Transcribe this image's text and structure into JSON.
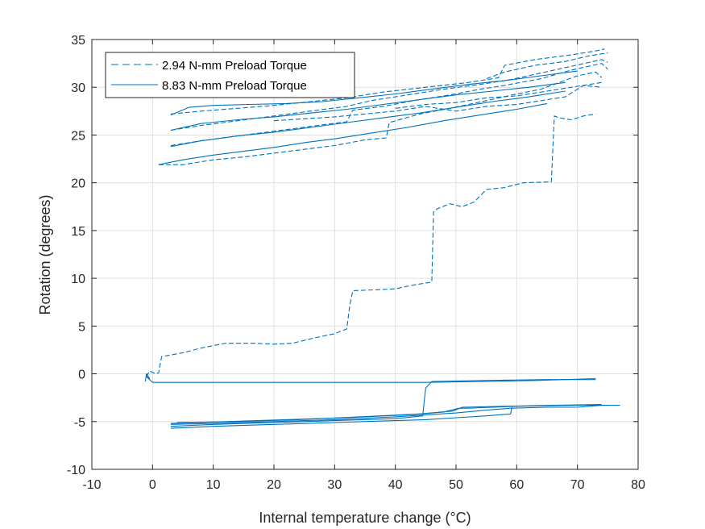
{
  "colors": {
    "series": "#0072BD",
    "grid": "#dfdfdf",
    "axis": "#262626"
  },
  "chart_data": {
    "type": "line",
    "title": "",
    "xlabel": "Internal temperature change (°C)",
    "ylabel": "Rotation (degrees)",
    "xlim": [
      -10,
      80
    ],
    "ylim": [
      -10,
      35
    ],
    "xticks": [
      -10,
      0,
      10,
      20,
      30,
      40,
      50,
      60,
      70,
      80
    ],
    "yticks": [
      -10,
      -5,
      0,
      5,
      10,
      15,
      20,
      25,
      30,
      35
    ],
    "grid": true,
    "legend_position": "top-left",
    "series": [
      {
        "name": "2.94 N-mm Preload Torque",
        "style": "dashed",
        "lines": [
          [
            [
              -1,
              -0.3
            ],
            [
              -0.5,
              0.3
            ],
            [
              0.5,
              0
            ],
            [
              1,
              0.1
            ],
            [
              1.5,
              1.8
            ],
            [
              5,
              2.2
            ],
            [
              8,
              2.7
            ],
            [
              12,
              3.2
            ],
            [
              17,
              3.2
            ],
            [
              20,
              3.1
            ],
            [
              23,
              3.2
            ],
            [
              27,
              3.8
            ],
            [
              30,
              4.2
            ],
            [
              32,
              4.7
            ],
            [
              32.5,
              7.2
            ],
            [
              33,
              8.7
            ],
            [
              37,
              8.8
            ],
            [
              40,
              8.9
            ],
            [
              43,
              9.3
            ],
            [
              46,
              9.6
            ],
            [
              46.3,
              17
            ],
            [
              47,
              17.3
            ],
            [
              49,
              17.8
            ],
            [
              51,
              17.5
            ],
            [
              53,
              18
            ],
            [
              55,
              19.3
            ],
            [
              58,
              19.5
            ],
            [
              61,
              20
            ],
            [
              65.7,
              20.1
            ],
            [
              66.2,
              27
            ],
            [
              67,
              26.8
            ],
            [
              69,
              26.6
            ],
            [
              71,
              27
            ],
            [
              73,
              27.2
            ]
          ],
          [
            [
              1,
              21.9
            ],
            [
              5,
              21.9
            ],
            [
              10,
              22.4
            ],
            [
              15,
              22.7
            ],
            [
              20,
              23.1
            ],
            [
              25,
              23.5
            ],
            [
              30,
              23.9
            ],
            [
              35,
              24.5
            ],
            [
              38.5,
              24.7
            ],
            [
              39,
              26.3
            ],
            [
              44,
              27.2
            ],
            [
              49,
              27.8
            ],
            [
              55,
              28.6
            ],
            [
              60,
              29.3
            ],
            [
              64,
              29.8
            ],
            [
              67,
              30.5
            ],
            [
              70,
              31.2
            ],
            [
              73,
              31.6
            ],
            [
              74,
              31
            ]
          ],
          [
            [
              3,
              23.9
            ],
            [
              8,
              24.4
            ],
            [
              14,
              24.9
            ],
            [
              20,
              25.4
            ],
            [
              26,
              25.9
            ],
            [
              32,
              26.4
            ],
            [
              33,
              27.6
            ],
            [
              38,
              28
            ],
            [
              43,
              28.6
            ],
            [
              49,
              29.2
            ],
            [
              54,
              29.8
            ],
            [
              58,
              30.2
            ],
            [
              64,
              30.9
            ],
            [
              69,
              31.8
            ],
            [
              74,
              32.5
            ],
            [
              75,
              31.9
            ]
          ],
          [
            [
              3,
              25.5
            ],
            [
              8,
              26
            ],
            [
              14,
              26.5
            ],
            [
              20,
              27
            ],
            [
              26,
              27.5
            ],
            [
              32,
              28
            ],
            [
              36,
              28.6
            ],
            [
              42,
              29.2
            ],
            [
              48,
              29.8
            ],
            [
              54,
              30.3
            ],
            [
              59,
              30.8
            ],
            [
              64,
              31.5
            ],
            [
              69,
              32.2
            ],
            [
              74,
              32.9
            ],
            [
              75,
              32.6
            ]
          ],
          [
            [
              3,
              27.2
            ],
            [
              8,
              27.5
            ],
            [
              14,
              27.8
            ],
            [
              20,
              28.1
            ],
            [
              26,
              28.5
            ],
            [
              32,
              28.9
            ],
            [
              38,
              29.5
            ],
            [
              45,
              30
            ],
            [
              52,
              30.5
            ],
            [
              57,
              31
            ],
            [
              58,
              32.3
            ],
            [
              63,
              32.9
            ],
            [
              69,
              33.4
            ],
            [
              73,
              33.8
            ],
            [
              74.5,
              34
            ]
          ],
          [
            [
              20,
              26.5
            ],
            [
              30,
              26.9
            ],
            [
              40,
              27.5
            ],
            [
              45,
              28
            ],
            [
              50,
              27.5
            ],
            [
              55,
              28
            ],
            [
              60,
              28.2
            ],
            [
              63,
              28.5
            ],
            [
              68,
              29
            ],
            [
              71,
              30.2
            ],
            [
              74,
              30
            ]
          ],
          [
            [
              40,
              27.8
            ],
            [
              45,
              28.2
            ],
            [
              50,
              28.4
            ],
            [
              55,
              28.9
            ],
            [
              60,
              29.1
            ],
            [
              65,
              29.6
            ],
            [
              70,
              30.1
            ],
            [
              74,
              30.5
            ]
          ],
          [
            [
              55,
              30.9
            ],
            [
              58,
              31.6
            ],
            [
              63,
              32.3
            ],
            [
              68,
              32.7
            ],
            [
              72,
              33.3
            ],
            [
              75,
              33.6
            ]
          ]
        ]
      },
      {
        "name": "8.83 N-mm Preload Torque",
        "style": "solid",
        "lines": [
          [
            [
              -1.2,
              -0.8
            ],
            [
              -1,
              0
            ],
            [
              -0.5,
              -0.5
            ],
            [
              -1,
              -0.3
            ],
            [
              0,
              -0.9
            ],
            [
              10,
              -0.9
            ],
            [
              20,
              -0.9
            ],
            [
              30,
              -0.9
            ],
            [
              40,
              -0.9
            ],
            [
              45,
              -0.9
            ],
            [
              55,
              -0.8
            ],
            [
              63,
              -0.7
            ],
            [
              73,
              -0.5
            ]
          ],
          [
            [
              1,
              21.9
            ],
            [
              5,
              22.4
            ],
            [
              10,
              22.9
            ],
            [
              15,
              23.3
            ],
            [
              20,
              23.7
            ],
            [
              25,
              24.2
            ],
            [
              30,
              24.6
            ],
            [
              36,
              25.2
            ],
            [
              42,
              25.8
            ],
            [
              48,
              26.5
            ],
            [
              54,
              27.1
            ],
            [
              60,
              27.7
            ],
            [
              65,
              28.3
            ]
          ],
          [
            [
              3,
              23.8
            ],
            [
              8,
              24.4
            ],
            [
              14,
              24.9
            ],
            [
              20,
              25.3
            ],
            [
              26,
              25.8
            ],
            [
              32,
              26.3
            ],
            [
              38,
              26.8
            ],
            [
              44,
              27.3
            ],
            [
              50,
              27.9
            ],
            [
              56,
              28.5
            ],
            [
              62,
              29
            ],
            [
              68,
              29.6
            ]
          ],
          [
            [
              3,
              25.5
            ],
            [
              8,
              26.2
            ],
            [
              14,
              26.6
            ],
            [
              20,
              26.9
            ],
            [
              26,
              27.3
            ],
            [
              32,
              27.7
            ],
            [
              38,
              28.2
            ],
            [
              44,
              28.7
            ],
            [
              50,
              29.2
            ],
            [
              56,
              29.6
            ],
            [
              62,
              30
            ],
            [
              68,
              30.5
            ]
          ],
          [
            [
              3,
              27.1
            ],
            [
              6,
              27.9
            ],
            [
              10,
              28.1
            ],
            [
              16,
              28.2
            ],
            [
              22,
              28.3
            ],
            [
              28,
              28.5
            ],
            [
              34,
              28.9
            ],
            [
              40,
              29.3
            ],
            [
              46,
              29.8
            ],
            [
              52,
              30.3
            ],
            [
              58,
              30.7
            ],
            [
              64,
              31.2
            ],
            [
              70,
              31.7
            ]
          ],
          [
            [
              3,
              -5.3
            ],
            [
              10,
              -5.2
            ],
            [
              20,
              -5
            ],
            [
              30,
              -4.8
            ],
            [
              40,
              -4.5
            ],
            [
              50,
              -4.1
            ],
            [
              55,
              -3.8
            ],
            [
              59,
              -3.6
            ],
            [
              65,
              -3.5
            ],
            [
              70,
              -3.5
            ],
            [
              74,
              -3.3
            ],
            [
              77,
              -3.3
            ]
          ],
          [
            [
              3,
              -5.7
            ],
            [
              10,
              -5.5
            ],
            [
              20,
              -5.3
            ],
            [
              30,
              -5.1
            ],
            [
              40,
              -4.9
            ],
            [
              45,
              -4.8
            ],
            [
              50,
              -4.6
            ],
            [
              55,
              -4.4
            ],
            [
              59,
              -4.2
            ],
            [
              59.2,
              -3.5
            ]
          ],
          [
            [
              3,
              -5.5
            ],
            [
              10,
              -5.3
            ],
            [
              20,
              -5.1
            ],
            [
              30,
              -4.9
            ],
            [
              40,
              -4.7
            ],
            [
              44.5,
              -4.4
            ],
            [
              45,
              -1.5
            ],
            [
              46,
              -0.8
            ],
            [
              55,
              -0.7
            ],
            [
              65,
              -0.6
            ],
            [
              73,
              -0.6
            ]
          ],
          [
            [
              3,
              -5.2
            ],
            [
              12,
              -5
            ],
            [
              22,
              -4.8
            ],
            [
              32,
              -4.6
            ],
            [
              42,
              -4.3
            ],
            [
              48,
              -4
            ],
            [
              50.5,
              -3.6
            ],
            [
              52,
              -3.6
            ],
            [
              60,
              -3.4
            ],
            [
              70,
              -3.3
            ],
            [
              75,
              -3.3
            ]
          ],
          [
            [
              4,
              -5.1
            ],
            [
              14,
              -5
            ],
            [
              24,
              -4.8
            ],
            [
              34,
              -4.5
            ],
            [
              44,
              -4.2
            ],
            [
              49.5,
              -3.9
            ],
            [
              51,
              -3.5
            ],
            [
              58,
              -3.4
            ],
            [
              66,
              -3.3
            ],
            [
              74,
              -3.2
            ]
          ]
        ]
      }
    ]
  }
}
